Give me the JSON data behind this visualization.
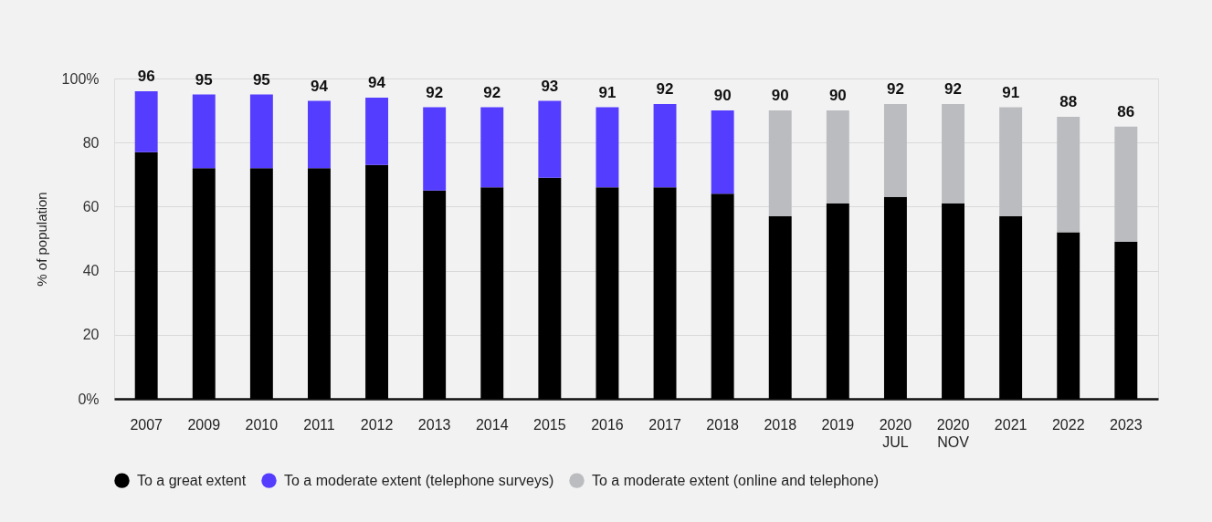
{
  "chart_data": {
    "type": "bar",
    "stacked": true,
    "ylabel": "% of population",
    "categories": [
      "2007",
      "2009",
      "2010",
      "2011",
      "2012",
      "2013",
      "2014",
      "2015",
      "2016",
      "2017",
      "2018",
      "2018",
      "2019",
      "2020 JUL",
      "2020 NOV",
      "2021",
      "2022",
      "2023"
    ],
    "series": [
      {
        "name": "To a great extent",
        "color": "#000000",
        "values": [
          77,
          72,
          72,
          72,
          73,
          65,
          66,
          69,
          66,
          66,
          64,
          57,
          61,
          63,
          61,
          57,
          52,
          49
        ]
      },
      {
        "name": "To a moderate extent (telephone surveys)",
        "color": "#553dff",
        "values": [
          19,
          23,
          23,
          21,
          21,
          26,
          25,
          24,
          25,
          26,
          26,
          null,
          null,
          null,
          null,
          null,
          null,
          null
        ]
      },
      {
        "name": "To a moderate extent (online and telephone)",
        "color": "#bbbcc0",
        "values": [
          null,
          null,
          null,
          null,
          null,
          null,
          null,
          null,
          null,
          null,
          null,
          33,
          29,
          29,
          31,
          34,
          36,
          36
        ]
      }
    ],
    "totals": [
      "96",
      "95",
      "95",
      "94",
      "94",
      "92",
      "92",
      "93",
      "91",
      "92",
      "90",
      "90",
      "90",
      "92",
      "92",
      "91",
      "88",
      "86"
    ],
    "ylim": [
      0,
      100
    ],
    "yticks": [
      {
        "value": 0,
        "label": "0%"
      },
      20,
      40,
      60,
      80,
      {
        "value": 100,
        "label": "100%"
      }
    ],
    "grid": "y",
    "legend": "bottom"
  }
}
